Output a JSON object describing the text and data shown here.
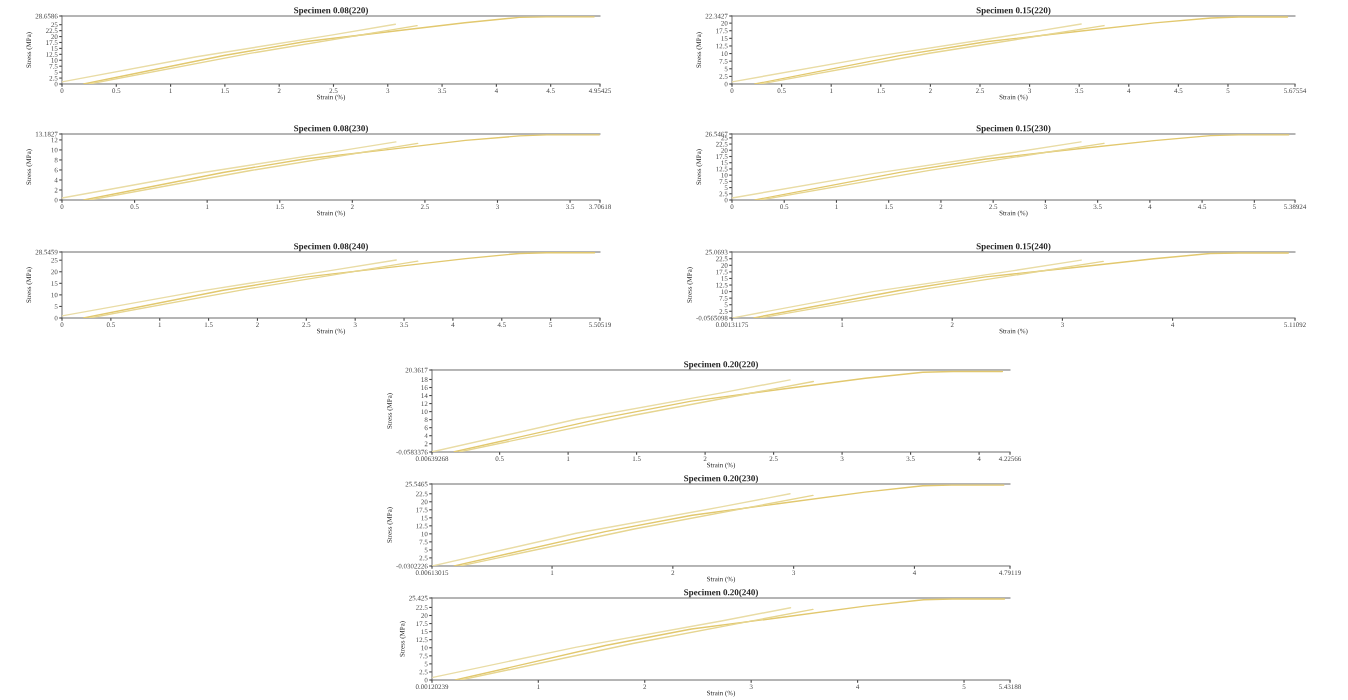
{
  "chart_data": [
    {
      "type": "line",
      "title": "Specimen 0.08(220)",
      "xlabel": "Strain (%)",
      "ylabel": "Stress (MPa)",
      "xlim": [
        0,
        4.95425
      ],
      "ylim": [
        0,
        28.6586
      ],
      "xticks": [
        0,
        0.5,
        1,
        1.5,
        2,
        2.5,
        3,
        3.5,
        4,
        4.5,
        4.95425
      ],
      "yticks": [
        0,
        2.5,
        5,
        7.5,
        10,
        12.5,
        15,
        17.5,
        20,
        22.5,
        25,
        28.6586
      ],
      "series": [
        {
          "color": "#e9dca5",
          "x": [
            0,
            1.24,
            2.48,
            3.07
          ],
          "values": [
            0.9,
            11.5,
            20.6,
            25.2
          ]
        },
        {
          "color": "#e2c86e",
          "x": [
            0.2,
            1.49,
            2.23,
            2.97,
            3.71,
            4.21,
            4.46,
            4.9
          ],
          "values": [
            0,
            12,
            17.8,
            21.8,
            25.8,
            28.1,
            28.3,
            28.3
          ]
        },
        {
          "color": "#e6d590",
          "x": [
            0.25,
            1.73,
            3.27
          ],
          "values": [
            0,
            12.9,
            24.6
          ]
        }
      ]
    },
    {
      "type": "line",
      "title": "Specimen 0.15(220)",
      "xlabel": "Strain (%)",
      "ylabel": "Stress (MPa)",
      "xlim": [
        0,
        5.67554
      ],
      "ylim": [
        0,
        22.3427
      ],
      "xticks": [
        0,
        0.5,
        1,
        1.5,
        2,
        2.5,
        3,
        3.5,
        4,
        4.5,
        5,
        5.67554
      ],
      "yticks": [
        0,
        2.5,
        5,
        7.5,
        10,
        12.5,
        15,
        17.5,
        20,
        22.3427
      ],
      "series": [
        {
          "color": "#e9dca5",
          "x": [
            0,
            1.42,
            2.84,
            3.52
          ],
          "values": [
            0.7,
            8.9,
            16.1,
            19.7
          ]
        },
        {
          "color": "#e2c86e",
          "x": [
            0.23,
            1.7,
            2.56,
            3.41,
            4.26,
            4.83,
            5.11,
            5.6
          ],
          "values": [
            0,
            9.4,
            13.9,
            17,
            20.1,
            21.7,
            22,
            22
          ]
        },
        {
          "color": "#e6d590",
          "x": [
            0.28,
            1.99,
            3.75
          ],
          "values": [
            0,
            10.1,
            19.2
          ]
        }
      ]
    },
    {
      "type": "line",
      "title": "Specimen 0.08(230)",
      "xlabel": "Strain (%)",
      "ylabel": "Stress (MPa)",
      "xlim": [
        0,
        3.70618
      ],
      "ylim": [
        0,
        13.1827
      ],
      "xticks": [
        0,
        0.5,
        1,
        1.5,
        2,
        2.5,
        3,
        3.5,
        3.70618
      ],
      "yticks": [
        0,
        2,
        4,
        6,
        8,
        10,
        12,
        13.1827
      ],
      "series": [
        {
          "color": "#e9dca5",
          "x": [
            0,
            0.93,
            1.85,
            2.3
          ],
          "values": [
            0.4,
            5.3,
            9.5,
            11.6
          ]
        },
        {
          "color": "#e2c86e",
          "x": [
            0.15,
            1.11,
            1.67,
            2.23,
            2.78,
            3.15,
            3.34,
            3.7
          ],
          "values": [
            0,
            5.5,
            8.2,
            10,
            11.9,
            12.8,
            13,
            13
          ]
        },
        {
          "color": "#e6d590",
          "x": [
            0.19,
            1.3,
            2.45
          ],
          "values": [
            0,
            5.9,
            11.3
          ]
        }
      ]
    },
    {
      "type": "line",
      "title": "Specimen 0.15(230)",
      "xlabel": "Strain (%)",
      "ylabel": "Stress (MPa)",
      "xlim": [
        0,
        5.38924
      ],
      "ylim": [
        0,
        26.5467
      ],
      "xticks": [
        0,
        0.5,
        1,
        1.5,
        2,
        2.5,
        3,
        3.5,
        4,
        4.5,
        5,
        5.38924
      ],
      "yticks": [
        0,
        2.5,
        5,
        7.5,
        10,
        12.5,
        15,
        17.5,
        20,
        22.5,
        25,
        26.5467
      ],
      "series": [
        {
          "color": "#e9dca5",
          "x": [
            0,
            1.35,
            2.69,
            3.34
          ],
          "values": [
            0.8,
            10.6,
            19.1,
            23.4
          ]
        },
        {
          "color": "#e2c86e",
          "x": [
            0.22,
            1.62,
            2.43,
            3.23,
            4.04,
            4.58,
            4.85,
            5.33
          ],
          "values": [
            0,
            11.2,
            16.5,
            20.2,
            23.9,
            25.9,
            26.2,
            26.2
          ]
        },
        {
          "color": "#e6d590",
          "x": [
            0.27,
            1.89,
            3.56
          ],
          "values": [
            0,
            11.9,
            22.8
          ]
        }
      ]
    },
    {
      "type": "line",
      "title": "Specimen 0.08(240)",
      "xlabel": "Strain (%)",
      "ylabel": "Stress (MPa)",
      "xlim": [
        0,
        5.50519
      ],
      "ylim": [
        0,
        28.5459
      ],
      "xticks": [
        0,
        0.5,
        1,
        1.5,
        2,
        2.5,
        3,
        3.5,
        4,
        4.5,
        5,
        5.50519
      ],
      "yticks": [
        0,
        5,
        10,
        15,
        20,
        25,
        28.5459
      ],
      "series": [
        {
          "color": "#e9dca5",
          "x": [
            0,
            1.38,
            2.76,
            3.42
          ],
          "values": [
            0.9,
            11.4,
            20.6,
            25.1
          ]
        },
        {
          "color": "#e2c86e",
          "x": [
            0.22,
            1.65,
            2.48,
            3.31,
            4.13,
            4.68,
            4.96,
            5.45
          ],
          "values": [
            0,
            12,
            17.7,
            21.7,
            25.7,
            27.9,
            28.2,
            28.2
          ]
        },
        {
          "color": "#e6d590",
          "x": [
            0.28,
            1.93,
            3.64
          ],
          "values": [
            0,
            12.8,
            24.6
          ]
        }
      ]
    },
    {
      "type": "line",
      "title": "Specimen 0.15(240)",
      "xlabel": "Strain (%)",
      "ylabel": "Stress (MPa)",
      "xlim": [
        0.00131175,
        5.11092
      ],
      "ylim": [
        -0.0565098,
        25.0693
      ],
      "xticks": [
        0.00131175,
        1,
        2,
        3,
        4,
        5.11092
      ],
      "yticks": [
        -0.0565098,
        2.5,
        5,
        7.5,
        10,
        12.5,
        15,
        17.5,
        20,
        22.5,
        25.0693
      ],
      "series": [
        {
          "color": "#e9dca5",
          "x": [
            0.01,
            1.28,
            2.56,
            3.17
          ],
          "values": [
            0,
            10,
            18,
            22
          ]
        },
        {
          "color": "#e2c86e",
          "x": [
            0.2,
            1.53,
            2.3,
            3.07,
            3.83,
            4.34,
            4.6,
            5.05
          ],
          "values": [
            0,
            10.5,
            15.6,
            19,
            22.5,
            24.5,
            24.7,
            24.7
          ]
        },
        {
          "color": "#e6d590",
          "x": [
            0.26,
            1.79,
            3.37
          ],
          "values": [
            0,
            11.2,
            21.5
          ]
        }
      ]
    },
    {
      "type": "line",
      "title": "Specimen 0.20(220)",
      "xlabel": "Strain (%)",
      "ylabel": "Stress (MPa)",
      "xlim": [
        0.00639268,
        4.22566
      ],
      "ylim": [
        -0.0583376,
        20.3617
      ],
      "xticks": [
        0.00639268,
        0.5,
        1,
        1.5,
        2,
        2.5,
        3,
        3.5,
        4,
        4.22566
      ],
      "yticks": [
        -0.0583376,
        2,
        4,
        6,
        8,
        10,
        12,
        14,
        16,
        18,
        20.3617
      ],
      "series": [
        {
          "color": "#e9dca5",
          "x": [
            0.01,
            1.06,
            2.11,
            2.62
          ],
          "values": [
            0,
            8.1,
            14.6,
            17.9
          ]
        },
        {
          "color": "#e2c86e",
          "x": [
            0.17,
            1.27,
            1.9,
            2.54,
            3.17,
            3.59,
            3.81,
            4.17
          ],
          "values": [
            0,
            8.5,
            12.6,
            15.5,
            18.3,
            19.8,
            20,
            20
          ]
        },
        {
          "color": "#e6d590",
          "x": [
            0.21,
            1.48,
            2.79
          ],
          "values": [
            0,
            9.1,
            17.5
          ]
        }
      ]
    },
    {
      "type": "line",
      "title": "Specimen 0.20(230)",
      "xlabel": "Strain (%)",
      "ylabel": "Stress (MPa)",
      "xlim": [
        0.00613015,
        4.79119
      ],
      "ylim": [
        -0.0302226,
        25.5465
      ],
      "xticks": [
        0.00613015,
        1,
        2,
        3,
        4,
        4.79119
      ],
      "yticks": [
        -0.0302226,
        2.5,
        5,
        7.5,
        10,
        12.5,
        15,
        17.5,
        20,
        22.5,
        25.5465
      ],
      "series": [
        {
          "color": "#e9dca5",
          "x": [
            0.01,
            1.2,
            2.4,
            2.97
          ],
          "values": [
            0,
            10.2,
            18.4,
            22.5
          ]
        },
        {
          "color": "#e2c86e",
          "x": [
            0.19,
            1.44,
            2.16,
            2.87,
            3.59,
            4.07,
            4.31,
            4.74
          ],
          "values": [
            0,
            10.7,
            15.8,
            19.4,
            23,
            25,
            25.2,
            25.2
          ]
        },
        {
          "color": "#e6d590",
          "x": [
            0.24,
            1.68,
            3.16
          ],
          "values": [
            0,
            11.5,
            22
          ]
        }
      ]
    },
    {
      "type": "line",
      "title": "Specimen 0.20(240)",
      "xlabel": "Strain (%)",
      "ylabel": "Stress (MPa)",
      "xlim": [
        0.00120239,
        5.43188
      ],
      "ylim": [
        0,
        25.425
      ],
      "xticks": [
        0.00120239,
        1,
        2,
        3,
        4,
        5,
        5.43188
      ],
      "yticks": [
        0,
        2.5,
        5,
        7.5,
        10,
        12.5,
        15,
        17.5,
        20,
        22.5,
        25.425
      ],
      "series": [
        {
          "color": "#e9dca5",
          "x": [
            0.01,
            1.36,
            2.72,
            3.37
          ],
          "values": [
            0.8,
            10.2,
            18.3,
            22.4
          ]
        },
        {
          "color": "#e2c86e",
          "x": [
            0.22,
            1.63,
            2.44,
            3.26,
            4.07,
            4.62,
            4.89,
            5.38
          ],
          "values": [
            0,
            10.7,
            15.8,
            19.3,
            22.9,
            24.9,
            25.1,
            25.1
          ]
        },
        {
          "color": "#e6d590",
          "x": [
            0.27,
            1.9,
            3.58
          ],
          "values": [
            0,
            11.4,
            21.9
          ]
        }
      ]
    }
  ]
}
